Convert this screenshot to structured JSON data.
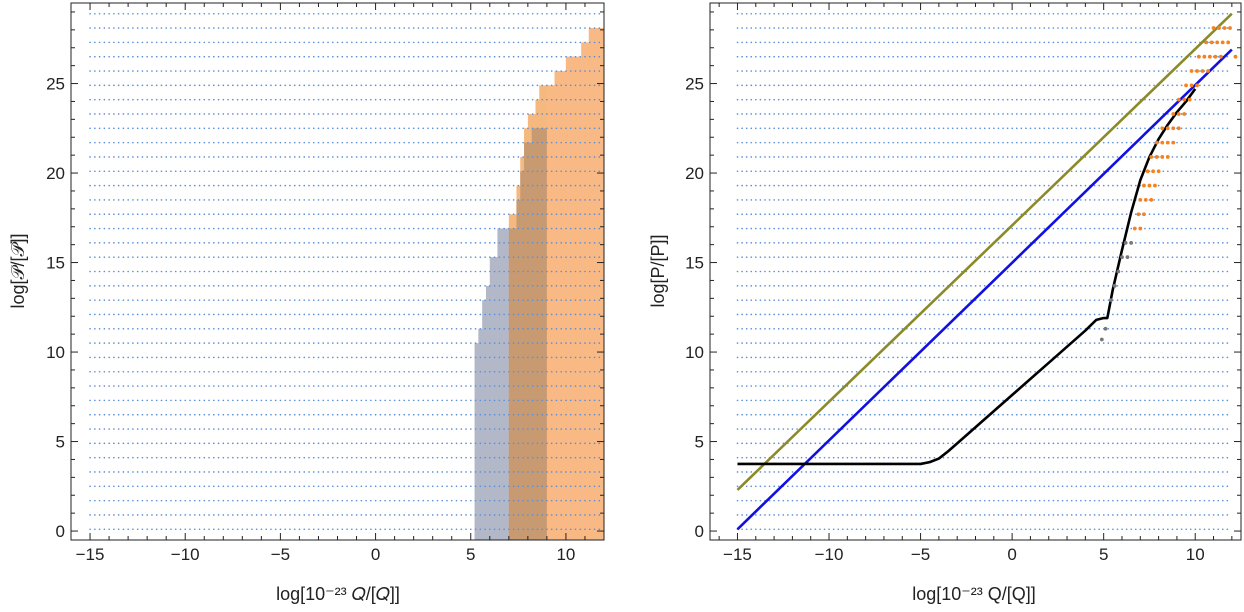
{
  "chart_data": [
    {
      "type": "scatter",
      "panel": "left",
      "xlabel": "log[10⁻²³ 𝑄/[𝑄]]",
      "ylabel": "log[𝒫/[𝒫]]",
      "xlim": [
        -16,
        12
      ],
      "ylim": [
        -0.5,
        29.5
      ],
      "xticks": [
        -15,
        -10,
        -5,
        0,
        5,
        10
      ],
      "yticks": [
        0,
        5,
        10,
        15,
        20,
        25
      ],
      "xtick_labels": [
        "−15",
        "−10",
        "−5",
        "0",
        "5",
        "10"
      ],
      "ytick_labels": [
        "0",
        "5",
        "10",
        "15",
        "20",
        "25"
      ],
      "grid": {
        "x_from": -15,
        "x_to": 12,
        "x_step": 0.25,
        "y_from": 0.1,
        "y_to": 28.9,
        "y_step": 0.8,
        "color": "#5b8fd8"
      },
      "regions": [
        {
          "color": "#b3b8c8",
          "x_start": 5.2,
          "steps": [
            [
              5.2,
              10.5
            ],
            [
              5.4,
              11.3
            ],
            [
              5.6,
              12.9
            ],
            [
              5.8,
              13.7
            ],
            [
              6.0,
              15.3
            ],
            [
              6.4,
              16.9
            ],
            [
              6.8,
              16.9
            ]
          ]
        },
        {
          "color": "#f5b97f",
          "x_start": 7.0,
          "steps": [
            [
              7.0,
              17.7
            ],
            [
              7.4,
              19.3
            ],
            [
              7.6,
              20.9
            ],
            [
              7.8,
              22.5
            ],
            [
              8.0,
              23.3
            ],
            [
              8.4,
              24.1
            ],
            [
              8.6,
              24.9
            ],
            [
              9.0,
              24.9
            ]
          ]
        },
        {
          "color": "#c89a72",
          "x_start": 7.0,
          "steps": [
            [
              7.0,
              16.9
            ],
            [
              7.4,
              18.5
            ],
            [
              7.6,
              20.1
            ],
            [
              7.8,
              21.7
            ],
            [
              8.2,
              22.5
            ],
            [
              8.6,
              22.5
            ],
            [
              9.0,
              22.5
            ]
          ]
        },
        {
          "color": "#f98a5c",
          "x_start": 9.0,
          "steps": [
            [
              9.0,
              22.5
            ],
            [
              9.4,
              25.7
            ],
            [
              10.0,
              26.5
            ],
            [
              10.8,
              26.5
            ],
            [
              11.2,
              27.3
            ],
            [
              12.0,
              27.3
            ]
          ]
        },
        {
          "color": "#f9b985",
          "x_start": 9.0,
          "steps": [
            [
              9.0,
              24.9
            ],
            [
              9.4,
              25.7
            ],
            [
              10.0,
              26.5
            ],
            [
              10.8,
              27.3
            ],
            [
              11.2,
              28.1
            ],
            [
              12.0,
              28.1
            ]
          ]
        }
      ]
    },
    {
      "type": "scatter",
      "panel": "right",
      "xlabel": "log[10⁻²³ Q/[Q]]",
      "ylabel": "log[P/[P]]",
      "xlim": [
        -16.5,
        12.5
      ],
      "ylim": [
        -0.5,
        29.5
      ],
      "xticks": [
        -15,
        -10,
        -5,
        0,
        5,
        10
      ],
      "yticks": [
        0,
        5,
        10,
        15,
        20,
        25
      ],
      "xtick_labels": [
        "−15",
        "−10",
        "−5",
        "0",
        "5",
        "10"
      ],
      "ytick_labels": [
        "0",
        "5",
        "10",
        "15",
        "20",
        "25"
      ],
      "grid": {
        "x_from": -15,
        "x_to": 12,
        "x_step": 0.25,
        "y_from": 0.1,
        "y_to": 28.9,
        "y_step": 0.8,
        "color": "#5b8fd8"
      },
      "series": [
        {
          "type": "line",
          "color": "#8b8a28",
          "x": [
            -15,
            12
          ],
          "y": [
            2.3,
            28.9
          ]
        },
        {
          "type": "line",
          "color": "#1010e0",
          "x": [
            -15,
            12
          ],
          "y": [
            0.1,
            26.9
          ]
        },
        {
          "type": "line",
          "color": "#000000",
          "x": [
            -15,
            -5,
            -4.5,
            -4,
            -3.5,
            -3,
            -2,
            0,
            2,
            4,
            4.6,
            5.0,
            5.2,
            5.5,
            6.0,
            6.5,
            7.0,
            7.5,
            8.0,
            8.5,
            9.0,
            9.5,
            10.0
          ],
          "y": [
            3.75,
            3.75,
            3.85,
            4.05,
            4.45,
            4.9,
            5.8,
            7.6,
            9.4,
            11.2,
            11.8,
            11.9,
            11.9,
            13.5,
            15.7,
            17.8,
            19.6,
            20.9,
            21.9,
            22.7,
            23.4,
            24.0,
            24.7
          ]
        },
        {
          "type": "scatter",
          "color": "#f58220",
          "points": [
            [
              11.0,
              28.1
            ],
            [
              11.3,
              28.1
            ],
            [
              11.6,
              28.1
            ],
            [
              11.9,
              28.1
            ],
            [
              10.6,
              27.3
            ],
            [
              10.9,
              27.3
            ],
            [
              11.2,
              27.3
            ],
            [
              11.5,
              27.3
            ],
            [
              11.8,
              27.3
            ],
            [
              10.2,
              26.5
            ],
            [
              10.5,
              26.5
            ],
            [
              10.8,
              26.5
            ],
            [
              11.1,
              26.5
            ],
            [
              11.4,
              26.5
            ],
            [
              12.2,
              26.5
            ],
            [
              9.8,
              25.7
            ],
            [
              10.1,
              25.7
            ],
            [
              10.4,
              25.7
            ],
            [
              10.7,
              25.7
            ],
            [
              9.5,
              24.9
            ],
            [
              9.8,
              24.9
            ],
            [
              10.1,
              24.9
            ],
            [
              9.1,
              24.1
            ],
            [
              9.4,
              24.1
            ],
            [
              9.7,
              24.1
            ],
            [
              8.8,
              23.3
            ],
            [
              9.1,
              23.3
            ],
            [
              9.4,
              23.3
            ],
            [
              8.2,
              22.5
            ],
            [
              8.5,
              22.5
            ],
            [
              8.8,
              22.5
            ],
            [
              9.1,
              22.5
            ],
            [
              7.9,
              21.7
            ],
            [
              8.2,
              21.7
            ],
            [
              8.5,
              21.7
            ],
            [
              8.8,
              21.7
            ],
            [
              7.6,
              20.9
            ],
            [
              7.9,
              20.9
            ],
            [
              8.2,
              20.9
            ],
            [
              8.5,
              20.9
            ],
            [
              7.4,
              20.1
            ],
            [
              7.7,
              20.1
            ],
            [
              8.0,
              20.1
            ],
            [
              7.2,
              19.3
            ],
            [
              7.5,
              19.3
            ],
            [
              7.8,
              19.3
            ],
            [
              7.0,
              18.5
            ],
            [
              7.3,
              18.5
            ],
            [
              7.6,
              18.5
            ],
            [
              6.9,
              17.7
            ],
            [
              7.2,
              17.7
            ],
            [
              6.7,
              16.9
            ],
            [
              7.0,
              16.9
            ]
          ]
        },
        {
          "type": "scatter",
          "color": "#777777",
          "points": [
            [
              6.2,
              16.1
            ],
            [
              6.5,
              16.1
            ],
            [
              6.0,
              15.3
            ],
            [
              6.3,
              15.3
            ],
            [
              5.8,
              14.5
            ],
            [
              5.6,
              13.7
            ],
            [
              5.4,
              12.9
            ],
            [
              5.1,
              11.3
            ],
            [
              4.9,
              10.7
            ]
          ]
        }
      ]
    }
  ]
}
